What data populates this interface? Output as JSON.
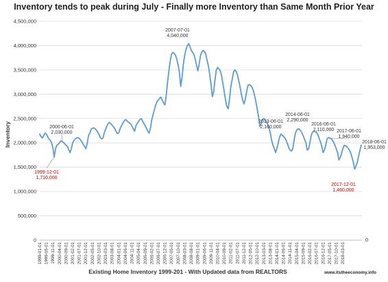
{
  "chart_data": {
    "type": "line",
    "title": "Inventory tends to peak during July - Finally more Inventory than Same Month Prior Year",
    "ylabel": "Inventory",
    "xlabel": "Existing Home Inventory 1999-201 - With Updated data from REALTORS",
    "credit": "www.itstheeconomy.info",
    "ylim": [
      0,
      4500000
    ],
    "yticks": [
      "0",
      "500,000",
      "1,000,000",
      "1,500,000",
      "2,000,000",
      "2,500,000",
      "3,000,000",
      "3,500,000",
      "4,000,000",
      "4,500,000"
    ],
    "x_right_tick": "0",
    "grid": true,
    "line_color": "#5b9bd5",
    "start": "1999-01",
    "x_tick_labels": [
      "1999-01-01",
      "1999-06-01",
      "1999-11-01",
      "2000-04-01",
      "2000-09-01",
      "2001-02-01",
      "2001-07-01",
      "2001-12-01",
      "2002-05-01",
      "2002-10-01",
      "2003-03-01",
      "2003-08-01",
      "2004-01-01",
      "2004-06-01",
      "2004-11-01",
      "2005-04-01",
      "2005-09-01",
      "2006-02-01",
      "2006-07-01",
      "2006-12-01",
      "2007-05-01",
      "2007-10-01",
      "2008-03-01",
      "2008-08-01",
      "2009-01-01",
      "2009-06-01",
      "2009-11-01",
      "2010-04-01",
      "2010-09-01",
      "2011-02-01",
      "2011-07-01",
      "2011-12-01",
      "2012-05-01",
      "2012-10-01",
      "2013-03-01",
      "2013-08-01",
      "2014-01-01",
      "2014-06-01",
      "2014-11-01",
      "2015-04-01",
      "2015-09-01",
      "2016-02-01",
      "2016-07-01",
      "2016-12-01",
      "2017-05-01",
      "2017-10-01",
      "2018-03-01"
    ],
    "series": [
      {
        "values": [
          2180000,
          2130000,
          2100000,
          2150000,
          2200000,
          2180000,
          2130000,
          2080000,
          2050000,
          2000000,
          1900000,
          1710000,
          1880000,
          1950000,
          1970000,
          2000000,
          2040000,
          2030000,
          2010000,
          1980000,
          1950000,
          1930000,
          1860000,
          1800000,
          1880000,
          2000000,
          2050000,
          2080000,
          2100000,
          2110000,
          2090000,
          2060000,
          2020000,
          1970000,
          1930000,
          1880000,
          1980000,
          2150000,
          2200000,
          2280000,
          2300000,
          2310000,
          2290000,
          2260000,
          2220000,
          2170000,
          2110000,
          2080000,
          2100000,
          2210000,
          2280000,
          2350000,
          2400000,
          2420000,
          2390000,
          2360000,
          2330000,
          2290000,
          2230000,
          2190000,
          2210000,
          2290000,
          2350000,
          2400000,
          2450000,
          2480000,
          2460000,
          2430000,
          2410000,
          2390000,
          2340000,
          2290000,
          2240000,
          2350000,
          2400000,
          2440000,
          2480000,
          2500000,
          2450000,
          2400000,
          2350000,
          2300000,
          2240000,
          2200000,
          2300000,
          2480000,
          2580000,
          2680000,
          2780000,
          2850000,
          2880000,
          2920000,
          2940000,
          2880000,
          2820000,
          2780000,
          2980000,
          3250000,
          3480000,
          3680000,
          3820000,
          3860000,
          3840000,
          3800000,
          3720000,
          3600000,
          3450000,
          3160000,
          3350000,
          3620000,
          3800000,
          3920000,
          4000000,
          4040000,
          3980000,
          3900000,
          3860000,
          3820000,
          3720000,
          3600000,
          3480000,
          3620000,
          3800000,
          3870000,
          3900000,
          3880000,
          3820000,
          3700000,
          3580000,
          3400000,
          3200000,
          2950000,
          3050000,
          3300000,
          3500000,
          3550000,
          3520000,
          3480000,
          3380000,
          3220000,
          3050000,
          2880000,
          2750000,
          2700000,
          2900000,
          3150000,
          3300000,
          3450000,
          3500000,
          3470000,
          3400000,
          3280000,
          3150000,
          3000000,
          2880000,
          2800000,
          2900000,
          3050000,
          3180000,
          3200000,
          3180000,
          3150000,
          3080000,
          2980000,
          2850000,
          2700000,
          2550000,
          2340000,
          2400000,
          2480000,
          2500000,
          2480000,
          2430000,
          2380000,
          2300000,
          2200000,
          2050000,
          1950000,
          1880000,
          1800000,
          1890000,
          2000000,
          2120000,
          2180000,
          2160000,
          2130000,
          2100000,
          2050000,
          1980000,
          1900000,
          1850000,
          1830000,
          1880000,
          2050000,
          2200000,
          2260000,
          2290000,
          2280000,
          2250000,
          2200000,
          2140000,
          2070000,
          2000000,
          1850000,
          1880000,
          2000000,
          2150000,
          2220000,
          2240000,
          2230000,
          2210000,
          2170000,
          2100000,
          2020000,
          1930000,
          1800000,
          1850000,
          1950000,
          2080000,
          2110000,
          2100000,
          2090000,
          2060000,
          2010000,
          1950000,
          1880000,
          1800000,
          1650000,
          1700000,
          1780000,
          1880000,
          1950000,
          1940000,
          1920000,
          1890000,
          1850000,
          1790000,
          1700000,
          1600000,
          1460000,
          1530000,
          1600000,
          1730000,
          1850000,
          1953000
        ]
      }
    ],
    "annotations": [
      {
        "date": "1999-12-01",
        "value": "1,710,000",
        "color": "#c00000"
      },
      {
        "date": "2000-06-01",
        "value": "2,030,000",
        "color": "#333333"
      },
      {
        "date": "2007-07-01",
        "value": "4,040,000",
        "color": "#333333"
      },
      {
        "date": "2013-06-01",
        "value": "2,160,000",
        "color": "#333333"
      },
      {
        "date": "2014-06-01",
        "value": "2,290,000",
        "color": "#333333"
      },
      {
        "date": "2016-06-01",
        "value": "2,110,000",
        "color": "#333333"
      },
      {
        "date": "2017-06-01",
        "value": "1,940,000",
        "color": "#333333"
      },
      {
        "date": "2017-12-01",
        "value": "1,460,000",
        "color": "#c00000"
      },
      {
        "date": "2018-06-01",
        "value": "1,953,000",
        "color": "#333333"
      }
    ]
  }
}
